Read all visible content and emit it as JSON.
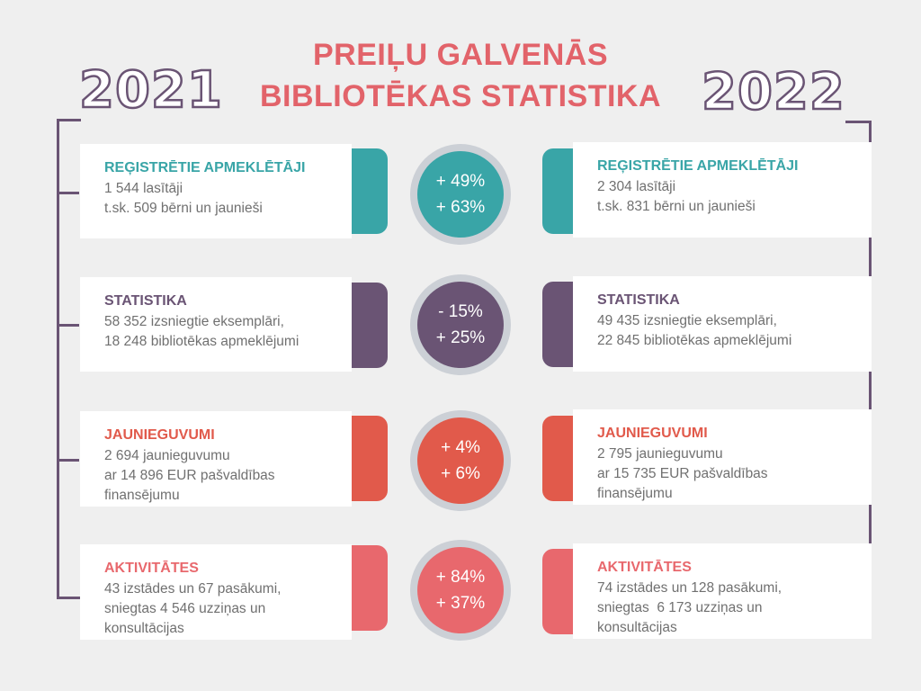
{
  "title": {
    "line1": "PREIĻU GALVENĀS",
    "line2": "BIBLIOTĒKAS STATISTIKA"
  },
  "years": {
    "left": "2021",
    "right": "2022"
  },
  "colors": {
    "teal": "#39a5a7",
    "purple": "#6a5474",
    "red": "#e15a4b",
    "pink": "#e8686d",
    "title": "#e2636a",
    "line": "#6a5474"
  },
  "rows": [
    {
      "heading": "REĢISTRĒTIE APMEKLĒTĀJI",
      "left_body": "1 544 lasītāji\nt.sk. 509 bērni un jaunieši",
      "right_body": "2 304 lasītāji\nt.sk. 831 bērni un jaunieši",
      "change1": "+ 49%",
      "change2": "+ 63%"
    },
    {
      "heading": "STATISTIKA",
      "left_body": "58 352 izsniegtie eksemplāri,\n18 248 bibliotēkas apmeklējumi",
      "right_body": "49 435 izsniegtie eksemplāri,\n22 845 bibliotēkas apmeklējumi",
      "change1": "- 15%",
      "change2": "+ 25%"
    },
    {
      "heading": "JAUNIEGUVUMI",
      "left_body": "2 694 jaunieguvumu\nar 14 896 EUR pašvaldības\nfinansējumu",
      "right_body": "2 795 jaunieguvumu\nar 15 735 EUR pašvaldības\nfinansējumu",
      "change1": "+ 4%",
      "change2": "+ 6%"
    },
    {
      "heading": "AKTIVITĀTES",
      "left_body": "43 izstādes un 67 pasākumi,\nsniegtas 4 546 uzziņas un\nkonsultācijas",
      "right_body": "74 izstādes un 128 pasākumi,\nsniegtas  6 173 uzziņas un\nkonsultācijas",
      "change1": "+ 84%",
      "change2": "+ 37%"
    }
  ]
}
